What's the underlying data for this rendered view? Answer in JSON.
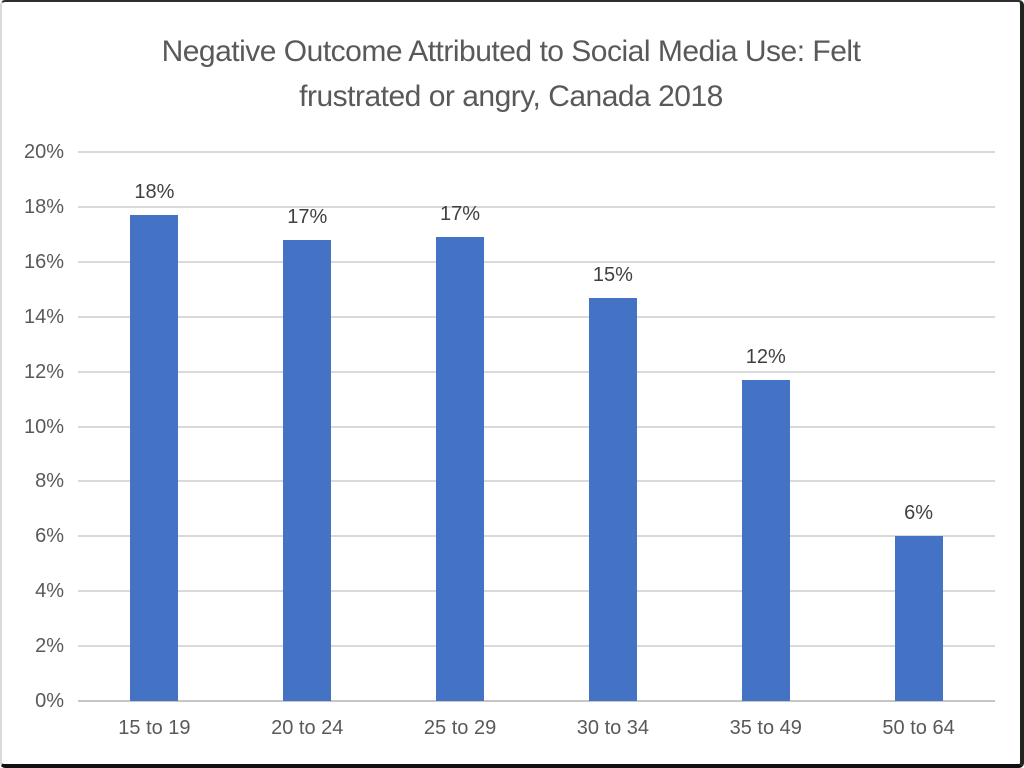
{
  "chart_data": {
    "type": "bar",
    "title": "Negative Outcome Attributed to Social Media Use: Felt frustrated or angry, Canada 2018",
    "title_lines": [
      "Negative Outcome Attributed to Social Media Use: Felt",
      "frustrated or angry, Canada 2018"
    ],
    "categories": [
      "15 to 19",
      "20 to 24",
      "25 to 29",
      "30 to 34",
      "35 to 49",
      "50 to 64"
    ],
    "values": [
      17.7,
      16.8,
      16.9,
      14.7,
      11.7,
      6.0
    ],
    "bar_labels": [
      "18%",
      "17%",
      "17%",
      "15%",
      "12%",
      "6%"
    ],
    "xlabel": "",
    "ylabel": "",
    "ylim": [
      0,
      20
    ],
    "ytick_step": 2,
    "ytick_labels": [
      "0%",
      "2%",
      "4%",
      "6%",
      "8%",
      "10%",
      "12%",
      "14%",
      "16%",
      "18%",
      "20%"
    ],
    "grid": true,
    "legend": "none",
    "colors": {
      "bar": "#4472C4",
      "gridline": "#D9D9D9",
      "axis_line": "#C6C6C6",
      "title_text": "#595959",
      "axis_text": "#595959",
      "data_label_text": "#404040"
    }
  }
}
